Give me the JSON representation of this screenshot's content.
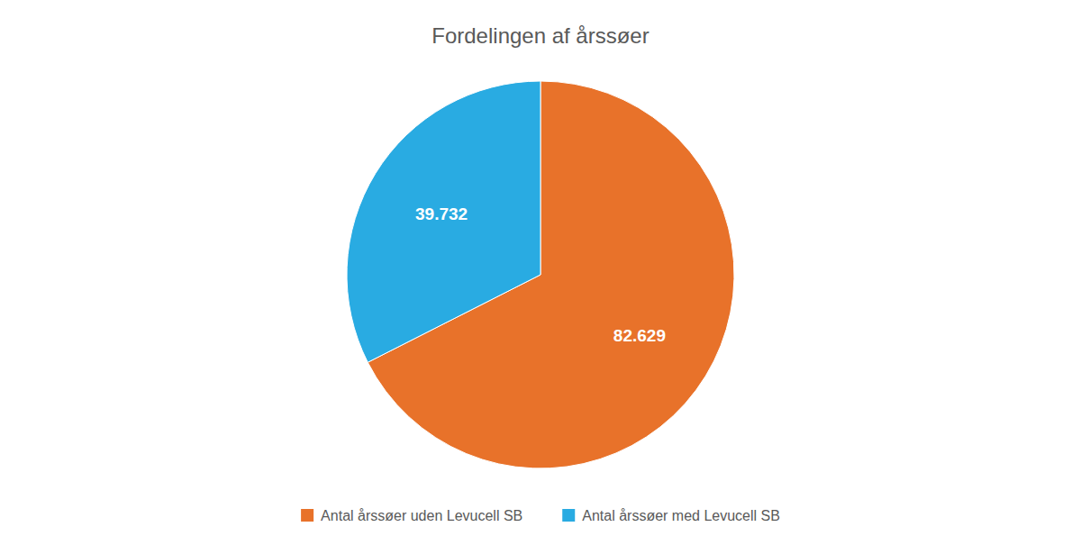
{
  "chart_data": {
    "type": "pie",
    "title": "Fordelingen af årssøer",
    "categories": [
      "Antal årssøer uden Levucell SB",
      "Antal årssøer med Levucell SB"
    ],
    "values": [
      82629,
      39732
    ],
    "value_labels": [
      "82.629",
      "39.732"
    ],
    "colors": [
      "#E8722A",
      "#29ABE2"
    ],
    "data_labels": true,
    "legend": "bottom"
  }
}
